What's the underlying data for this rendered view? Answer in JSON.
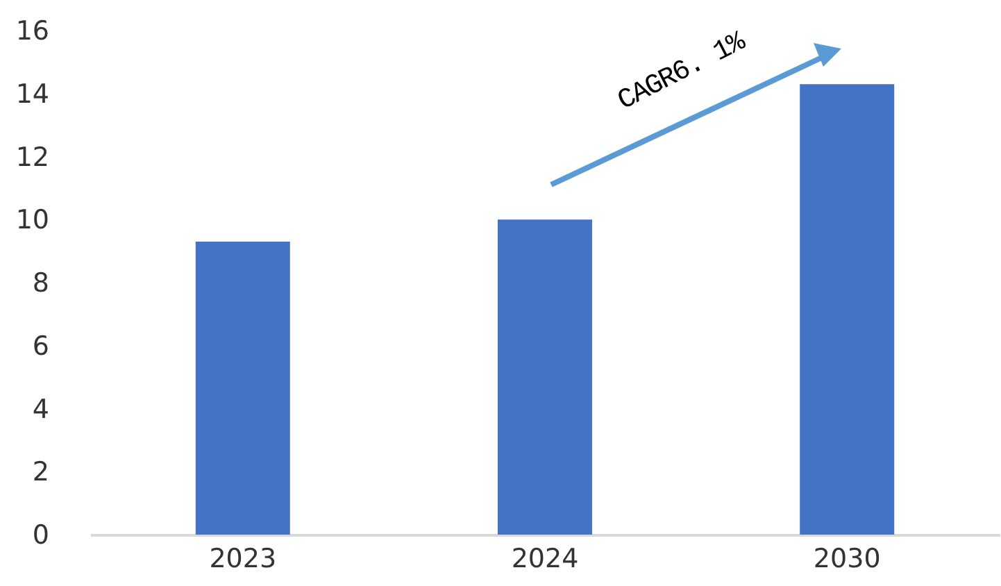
{
  "chart_data": {
    "type": "bar",
    "categories": [
      "2023",
      "2024",
      "2030"
    ],
    "values": [
      9.3,
      10.0,
      14.3
    ],
    "color": "#4472c4",
    "ylim": [
      0,
      16
    ],
    "yticks": [
      0,
      2,
      4,
      6,
      8,
      10,
      12,
      14,
      16
    ],
    "grid": false,
    "annotations": [
      "CAGR6. 1%"
    ]
  }
}
